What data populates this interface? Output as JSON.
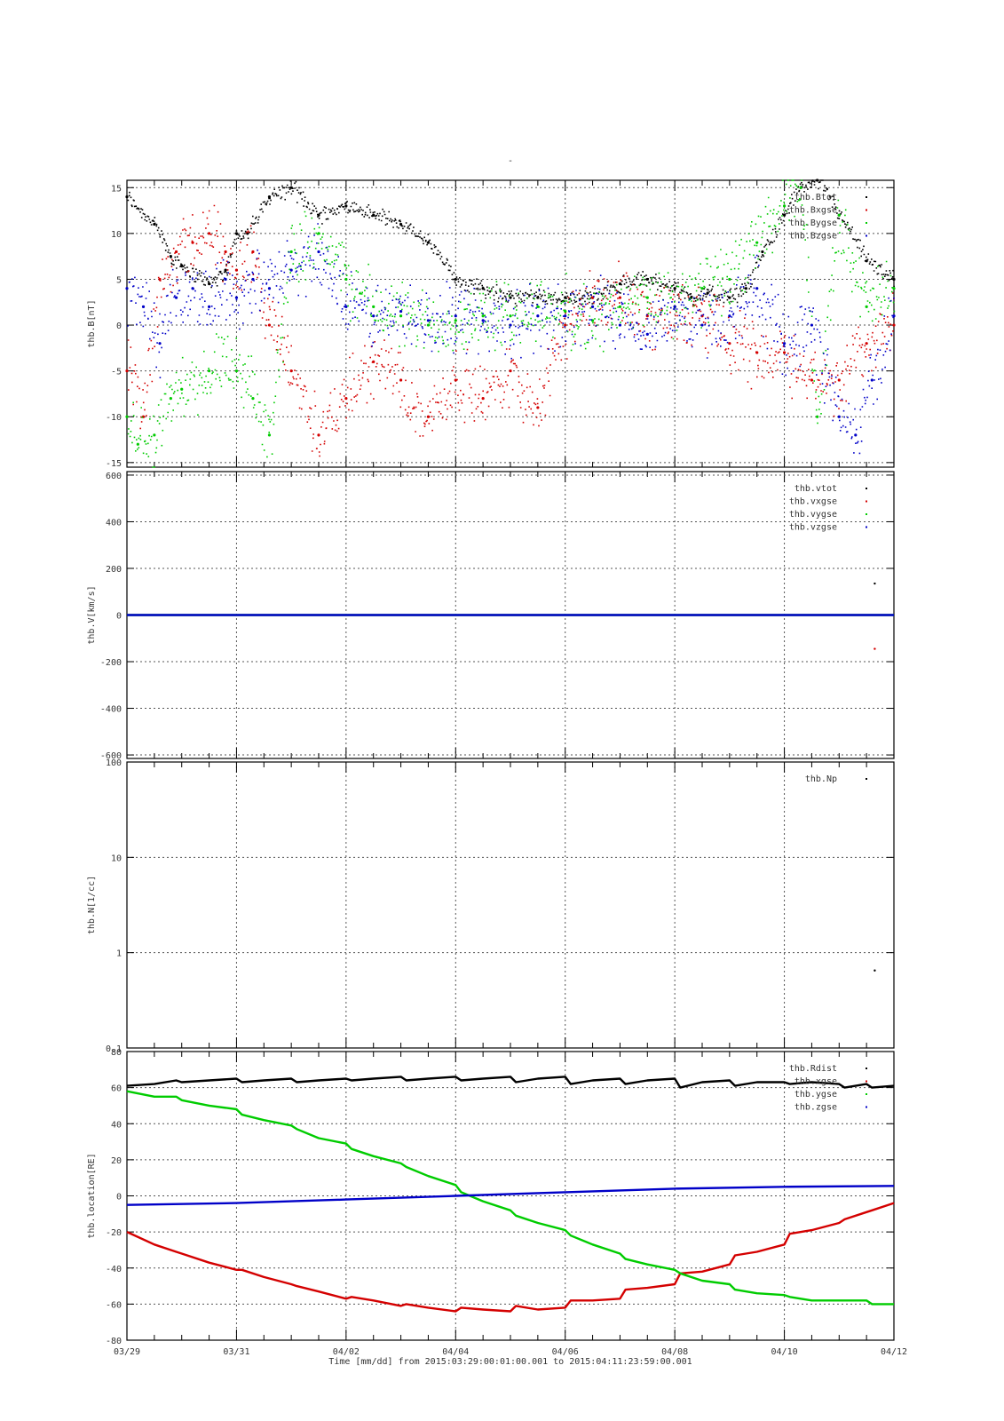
{
  "figure": {
    "title": "-",
    "xlabel": "Time [mm/dd]  from 2015:03:29:00:01:00.001  to  2015:04:11:23:59:00.001",
    "xticks": [
      "03/29",
      "03/31",
      "04/02",
      "04/04",
      "04/06",
      "04/08",
      "04/10",
      "04/12"
    ]
  },
  "colors": {
    "black": "#000000",
    "red": "#d40000",
    "green": "#00cc00",
    "blue": "#0000c8",
    "grid": "#555555"
  },
  "chart_data": [
    {
      "type": "scatter",
      "ylabel": "thb.B[nT]",
      "ylim": [
        -15.5,
        15.8
      ],
      "yticks": [
        "15",
        "10",
        "5",
        "0",
        "-5",
        "-10",
        "-15"
      ],
      "x_unit": "days since 03/29",
      "legend_position": "top-right",
      "series": [
        {
          "name": "thb.Btot",
          "color": "#000000",
          "x": [
            0,
            0.5,
            0.8,
            1.0,
            1.5,
            1.8,
            2.0,
            2.2,
            2.6,
            3.0,
            3.5,
            4.0,
            4.5,
            5.0,
            5.5,
            6.0,
            6.5,
            7.0,
            7.5,
            8.0,
            8.5,
            9.0,
            9.5,
            10.0,
            10.3,
            10.6,
            11.0,
            11.3,
            11.6,
            12.0,
            12.3,
            12.6,
            13.0,
            13.5,
            14.0
          ],
          "y": [
            14,
            11,
            7.5,
            6.5,
            4.5,
            6,
            10,
            10,
            14,
            15,
            12,
            13,
            12,
            11,
            9,
            5,
            4,
            3,
            3,
            3,
            3,
            4.5,
            5,
            4,
            3,
            3.5,
            3,
            4,
            8,
            12,
            15,
            16,
            12,
            7,
            5
          ]
        },
        {
          "name": "thb.Bxgse",
          "color": "#d40000",
          "x": [
            0,
            0.3,
            0.6,
            0.9,
            1.2,
            1.5,
            1.8,
            2.0,
            2.3,
            2.6,
            3.0,
            3.5,
            4.0,
            4.5,
            5.0,
            5.5,
            6.0,
            6.5,
            7.0,
            7.5,
            8.0,
            8.5,
            9.0,
            9.5,
            10.0,
            10.5,
            11.0,
            11.5,
            12.0,
            12.5,
            13.0,
            13.5,
            14.0
          ],
          "y": [
            -5,
            -10,
            5,
            8,
            9,
            10,
            8,
            6,
            8,
            0,
            -5,
            -12,
            -8,
            -4,
            -6,
            -10,
            -6,
            -8,
            -5,
            -9,
            0,
            3,
            3,
            1,
            2,
            1,
            -2,
            -3,
            -3,
            -6,
            -6,
            -2,
            0
          ]
        },
        {
          "name": "thb.Bygse",
          "color": "#00cc00",
          "x": [
            0,
            0.2,
            0.5,
            0.8,
            1.0,
            1.5,
            2.0,
            2.3,
            2.6,
            3.0,
            3.5,
            4.0,
            4.5,
            5.0,
            5.5,
            6.0,
            6.5,
            7.0,
            7.5,
            8.0,
            8.5,
            9.0,
            9.5,
            10.0,
            10.5,
            11.0,
            11.5,
            12.0,
            12.3,
            12.6,
            13.0,
            13.5,
            14.0
          ],
          "y": [
            -10,
            -13,
            -12,
            -8,
            -7,
            -5,
            -5,
            -8,
            -12,
            8,
            10,
            5,
            2,
            1,
            0,
            0.5,
            1,
            1,
            2,
            1.5,
            0.5,
            2,
            3,
            2,
            4,
            5,
            9,
            13,
            15,
            -10,
            12,
            2,
            4
          ]
        },
        {
          "name": "thb.Bzgse",
          "color": "#0000c8",
          "x": [
            0,
            0.3,
            0.6,
            0.9,
            1.2,
            1.5,
            1.8,
            2.0,
            2.3,
            2.6,
            3.0,
            3.5,
            4.0,
            4.5,
            5.0,
            5.5,
            6.0,
            6.5,
            7.0,
            7.5,
            8.0,
            8.5,
            9.0,
            9.5,
            10.0,
            10.5,
            11.0,
            11.5,
            12.0,
            12.5,
            13.0,
            13.3,
            13.6,
            14.0
          ],
          "y": [
            4,
            2,
            -2,
            3,
            4,
            2,
            5,
            3,
            5,
            4,
            6,
            8,
            2,
            1,
            1.5,
            0.5,
            1,
            0.5,
            0,
            1,
            1,
            2,
            0,
            -1,
            2,
            0,
            1,
            4,
            -2,
            0,
            -10,
            -12,
            -6,
            1
          ]
        }
      ]
    },
    {
      "type": "scatter",
      "ylabel": "thb.V[km/s]",
      "ylim": [
        -615,
        615
      ],
      "yticks": [
        "600",
        "400",
        "200",
        "0",
        "-200",
        "-400",
        "-600"
      ],
      "legend_position": "top-right",
      "series": [
        {
          "name": "thb.vtot",
          "color": "#000000",
          "x": [
            13.65
          ],
          "y": [
            135
          ]
        },
        {
          "name": "thb.vxgse",
          "color": "#d40000",
          "x": [
            13.65
          ],
          "y": [
            -145
          ]
        },
        {
          "name": "thb.vygse",
          "color": "#00cc00",
          "x": [
            0,
            14
          ],
          "y": [
            0,
            0
          ]
        },
        {
          "name": "thb.vzgse",
          "color": "#0000c8",
          "x": [
            0,
            14
          ],
          "y": [
            0,
            0
          ]
        }
      ]
    },
    {
      "type": "scatter",
      "ylabel": "thb.N[1/cc]",
      "yscale": "log",
      "ylim": [
        0.1,
        100
      ],
      "yticks": [
        "100",
        "10",
        "1",
        "0.1"
      ],
      "legend_position": "top-right",
      "series": [
        {
          "name": "thb.Np",
          "color": "#000000",
          "x": [
            13.65
          ],
          "y": [
            0.65
          ]
        }
      ]
    },
    {
      "type": "line",
      "ylabel": "thb.location[RE]",
      "ylim": [
        -80,
        80
      ],
      "yticks": [
        "80",
        "60",
        "40",
        "20",
        "0",
        "-20",
        "-40",
        "-60",
        "-80"
      ],
      "legend_position": "top-right",
      "series": [
        {
          "name": "thb.Rdist",
          "color": "#000000",
          "x": [
            0,
            0.5,
            0.9,
            1.0,
            1.5,
            2.0,
            2.1,
            2.5,
            3.0,
            3.1,
            3.5,
            4.0,
            4.1,
            4.5,
            5.0,
            5.1,
            5.5,
            6.0,
            6.1,
            6.5,
            7.0,
            7.1,
            7.5,
            8.0,
            8.1,
            8.5,
            9.0,
            9.1,
            9.5,
            10.0,
            10.1,
            10.5,
            11.0,
            11.1,
            11.5,
            12.0,
            12.1,
            12.5,
            13.0,
            13.1,
            13.5,
            13.6,
            14.0
          ],
          "y": [
            61,
            62,
            64,
            63,
            64,
            65,
            63,
            64,
            65,
            63,
            64,
            65,
            64,
            65,
            66,
            64,
            65,
            66,
            64,
            65,
            66,
            63,
            65,
            66,
            62,
            64,
            65,
            62,
            64,
            65,
            60,
            63,
            64,
            61,
            63,
            63,
            62,
            63,
            62,
            60,
            62,
            60,
            61
          ]
        },
        {
          "name": "thb.xgse",
          "color": "#d40000",
          "x": [
            0,
            0.5,
            0.9,
            1.0,
            1.5,
            2.0,
            2.1,
            2.5,
            3.0,
            3.1,
            3.5,
            4.0,
            4.1,
            4.5,
            5.0,
            5.1,
            5.5,
            6.0,
            6.1,
            6.5,
            7.0,
            7.1,
            7.5,
            8.0,
            8.1,
            8.5,
            9.0,
            9.1,
            9.5,
            10.0,
            10.1,
            10.5,
            11.0,
            11.1,
            11.5,
            12.0,
            12.1,
            12.5,
            13.0,
            13.1,
            13.5,
            13.6,
            14.0
          ],
          "y": [
            -20,
            -27,
            -31,
            -32,
            -37,
            -41,
            -41,
            -45,
            -49,
            -50,
            -53,
            -57,
            -56,
            -58,
            -61,
            -60,
            -62,
            -64,
            -62,
            -63,
            -64,
            -61,
            -63,
            -62,
            -58,
            -58,
            -57,
            -52,
            -51,
            -49,
            -43,
            -42,
            -38,
            -33,
            -31,
            -27,
            -21,
            -19,
            -15,
            -13,
            -9,
            -8,
            -4
          ]
        },
        {
          "name": "thb.ygse",
          "color": "#00cc00",
          "x": [
            0,
            0.5,
            0.9,
            1.0,
            1.5,
            2.0,
            2.1,
            2.5,
            3.0,
            3.1,
            3.5,
            4.0,
            4.1,
            4.5,
            5.0,
            5.1,
            5.5,
            6.0,
            6.1,
            6.5,
            7.0,
            7.1,
            7.5,
            8.0,
            8.1,
            8.5,
            9.0,
            9.1,
            9.5,
            10.0,
            10.1,
            10.5,
            11.0,
            11.1,
            11.5,
            12.0,
            12.1,
            12.5,
            13.0,
            13.1,
            13.5,
            13.6,
            14.0
          ],
          "y": [
            58,
            55,
            55,
            53,
            50,
            48,
            45,
            42,
            39,
            37,
            32,
            29,
            26,
            22,
            18,
            16,
            11,
            6,
            2,
            -3,
            -8,
            -11,
            -15,
            -19,
            -22,
            -27,
            -32,
            -35,
            -38,
            -41,
            -43,
            -47,
            -49,
            -52,
            -54,
            -55,
            -56,
            -58,
            -58,
            -58,
            -58,
            -60,
            -60
          ]
        },
        {
          "name": "thb.zgse",
          "color": "#0000c8",
          "x": [
            0,
            2,
            4,
            6,
            8,
            10,
            12,
            14
          ],
          "y": [
            -5,
            -4,
            -2,
            0,
            2,
            4,
            5,
            5.5
          ]
        }
      ]
    }
  ]
}
